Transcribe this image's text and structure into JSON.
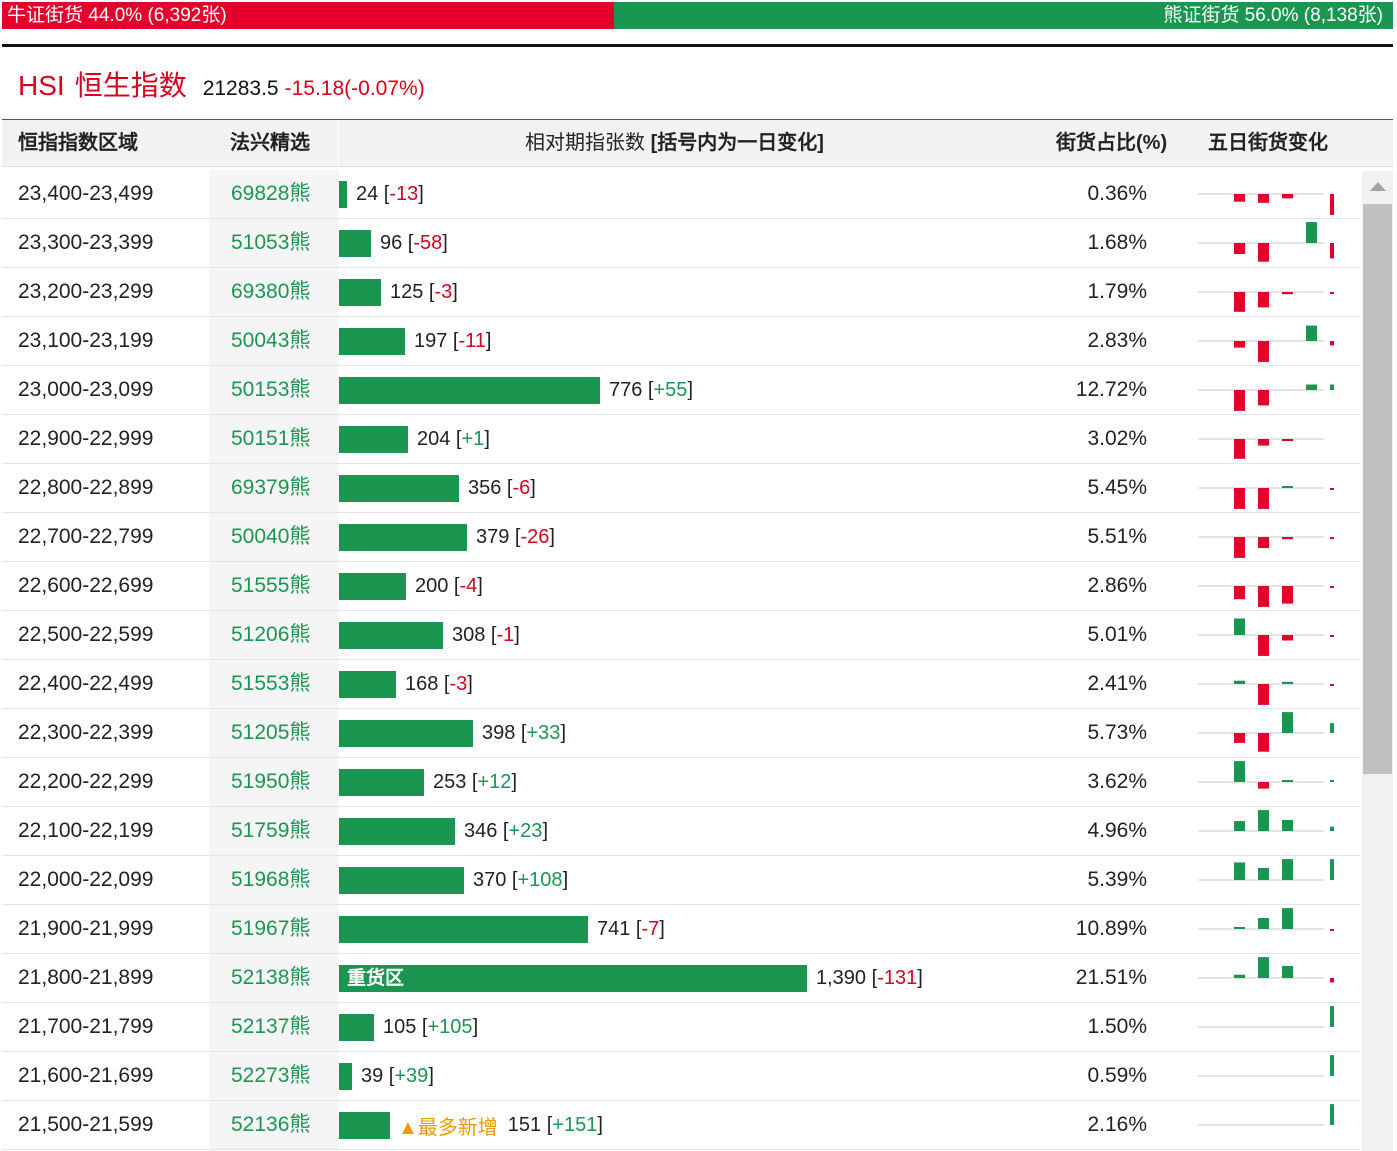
{
  "summary": {
    "bull": {
      "label": "牛证街货",
      "pct": "44.0%",
      "count": "(6,392张)",
      "share": 0.44
    },
    "bear": {
      "label": "熊证街货",
      "pct": "56.0%",
      "count": "(8,138张)",
      "share": 0.56
    }
  },
  "index": {
    "code": "HSI",
    "name": "恒生指数",
    "value": "21283.5",
    "change": "-15.18(-0.07%)"
  },
  "headers": {
    "range": "恒指指数区域",
    "pick": "法兴精选",
    "count_main": "相对期指张数",
    "count_bracket": "[括号内为一日变化]",
    "pct": "街货占比(%)",
    "five_day": "五日街货变化"
  },
  "colors": {
    "up": "#1a9651",
    "down": "#e4002b",
    "new_tag": "#f39800"
  },
  "rows": [
    {
      "range": "23,400-23,499",
      "code": "69828熊",
      "count": "24",
      "count_value": 24,
      "change": "-13",
      "pct": "0.36%",
      "spark": [
        -0.35,
        -0.4,
        -0.2,
        0,
        -0.95
      ]
    },
    {
      "range": "23,300-23,399",
      "code": "51053熊",
      "count": "96",
      "count_value": 96,
      "change": "-58",
      "pct": "1.68%",
      "spark": [
        -0.5,
        -0.85,
        0,
        0.95,
        -0.7
      ]
    },
    {
      "range": "23,200-23,299",
      "code": "69380熊",
      "count": "125",
      "count_value": 125,
      "change": "-3",
      "pct": "1.79%",
      "spark": [
        -0.9,
        -0.7,
        -0.1,
        0,
        -0.05
      ]
    },
    {
      "range": "23,100-23,199",
      "code": "50043熊",
      "count": "197",
      "count_value": 197,
      "change": "-11",
      "pct": "2.83%",
      "spark": [
        -0.3,
        -0.95,
        0,
        0.7,
        -0.2
      ]
    },
    {
      "range": "23,000-23,099",
      "code": "50153熊",
      "count": "776",
      "count_value": 776,
      "change": "+55",
      "pct": "12.72%",
      "spark": [
        -0.95,
        -0.7,
        0,
        0.25,
        0.25
      ]
    },
    {
      "range": "22,900-22,999",
      "code": "50151熊",
      "count": "204",
      "count_value": 204,
      "change": "+1",
      "pct": "3.02%",
      "spark": [
        -0.9,
        -0.3,
        -0.05,
        0,
        0
      ]
    },
    {
      "range": "22,800-22,899",
      "code": "69379熊",
      "count": "356",
      "count_value": 356,
      "change": "-6",
      "pct": "5.45%",
      "spark": [
        -0.95,
        -0.95,
        0.05,
        0,
        -0.05
      ]
    },
    {
      "range": "22,700-22,799",
      "code": "50040熊",
      "count": "379",
      "count_value": 379,
      "change": "-26",
      "pct": "5.51%",
      "spark": [
        -0.95,
        -0.5,
        -0.1,
        0,
        -0.1
      ]
    },
    {
      "range": "22,600-22,699",
      "code": "51555熊",
      "count": "200",
      "count_value": 200,
      "change": "-4",
      "pct": "2.86%",
      "spark": [
        -0.6,
        -0.95,
        -0.8,
        0,
        -0.05
      ]
    },
    {
      "range": "22,500-22,599",
      "code": "51206熊",
      "count": "308",
      "count_value": 308,
      "change": "-1",
      "pct": "5.01%",
      "spark": [
        0.75,
        -0.95,
        -0.25,
        0,
        -0.05
      ]
    },
    {
      "range": "22,400-22,499",
      "code": "51553熊",
      "count": "168",
      "count_value": 168,
      "change": "-3",
      "pct": "2.41%",
      "spark": [
        0.15,
        -0.95,
        0.1,
        0,
        -0.05
      ]
    },
    {
      "range": "22,300-22,399",
      "code": "51205熊",
      "count": "398",
      "count_value": 398,
      "change": "+33",
      "pct": "5.73%",
      "spark": [
        -0.45,
        -0.85,
        0.95,
        0,
        0.45
      ]
    },
    {
      "range": "22,200-22,299",
      "code": "51950熊",
      "count": "253",
      "count_value": 253,
      "change": "+12",
      "pct": "3.62%",
      "spark": [
        0.95,
        -0.3,
        0.05,
        0,
        0.05
      ]
    },
    {
      "range": "22,100-22,199",
      "code": "51759熊",
      "count": "346",
      "count_value": 346,
      "change": "+23",
      "pct": "4.96%",
      "spark": [
        0.45,
        0.95,
        0.5,
        0,
        0.2
      ]
    },
    {
      "range": "22,000-22,099",
      "code": "51968熊",
      "count": "370",
      "count_value": 370,
      "change": "+108",
      "pct": "5.39%",
      "spark": [
        0.8,
        0.55,
        0.95,
        0,
        0.95
      ]
    },
    {
      "range": "21,900-21,999",
      "code": "51967熊",
      "count": "741",
      "count_value": 741,
      "change": "-7",
      "pct": "10.89%",
      "spark": [
        0.05,
        0.5,
        0.95,
        0,
        -0.05
      ]
    },
    {
      "range": "21,800-21,899",
      "code": "52138熊",
      "count": "1,390",
      "count_value": 1390,
      "change": "-131",
      "pct": "21.51%",
      "spark": [
        0.15,
        0.95,
        0.55,
        0,
        -0.2
      ],
      "bar_text": "重货区"
    },
    {
      "range": "21,700-21,799",
      "code": "52137熊",
      "count": "105",
      "count_value": 105,
      "change": "+105",
      "pct": "1.50%",
      "spark": [
        0,
        0,
        0,
        0,
        0.95
      ]
    },
    {
      "range": "21,600-21,699",
      "code": "52273熊",
      "count": "39",
      "count_value": 39,
      "change": "+39",
      "pct": "0.59%",
      "spark": [
        0,
        0,
        0,
        0,
        0.95
      ]
    },
    {
      "range": "21,500-21,599",
      "code": "52136熊",
      "count": "151",
      "count_value": 151,
      "change": "+151",
      "pct": "2.16%",
      "spark": [
        0,
        0,
        0,
        0,
        0.95
      ],
      "tag": "▲最多新增"
    }
  ]
}
